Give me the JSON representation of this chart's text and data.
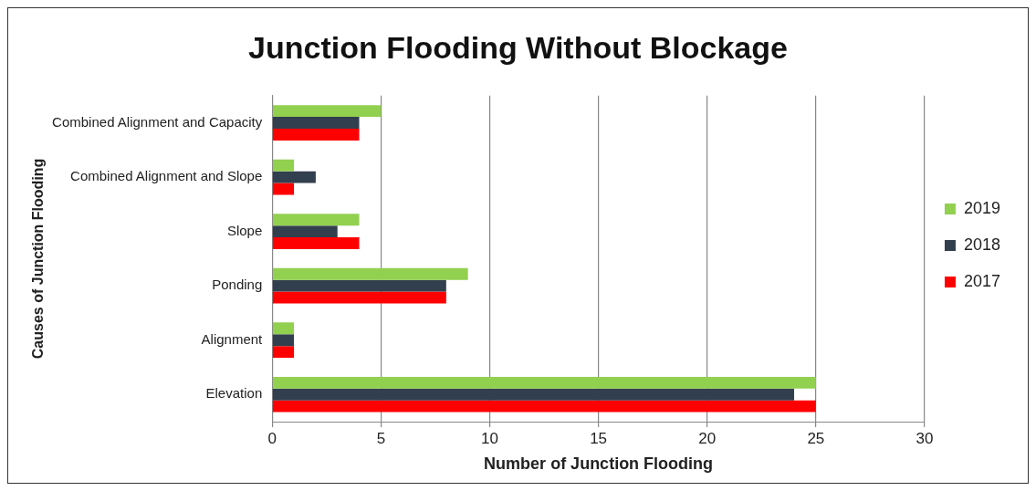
{
  "chart_data": {
    "type": "bar",
    "orientation": "horizontal",
    "title": "Junction Flooding Without Blockage",
    "xlabel": "Number of Junction Flooding",
    "ylabel": "Causes of Junction Flooding",
    "categories": [
      "Combined Alignment and Capacity",
      "Combined Alignment and Slope",
      "Slope",
      "Ponding",
      "Alignment",
      "Elevation"
    ],
    "series": [
      {
        "name": "2019",
        "color": "#92d050",
        "values": [
          5,
          1,
          4,
          9,
          1,
          25
        ]
      },
      {
        "name": "2018",
        "color": "#323f4f",
        "values": [
          4,
          2,
          3,
          8,
          1,
          24
        ]
      },
      {
        "name": "2017",
        "color": "#ff0000",
        "values": [
          4,
          1,
          4,
          8,
          1,
          25
        ]
      }
    ],
    "xlim": [
      0,
      30
    ],
    "xticks": [
      0,
      5,
      10,
      15,
      20,
      25,
      30
    ],
    "grid": "x",
    "legend": "right"
  }
}
